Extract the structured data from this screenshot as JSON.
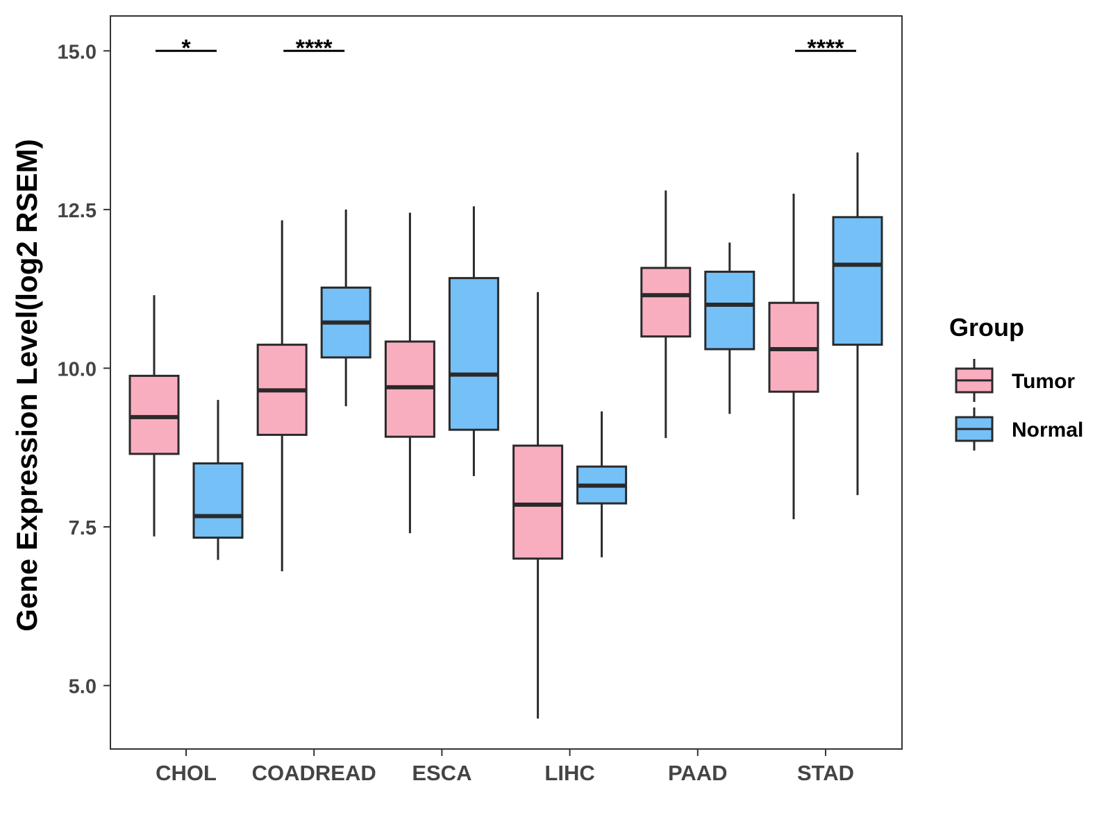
{
  "chart_data": {
    "type": "boxplot",
    "title": "",
    "xlabel": "",
    "ylabel": "Gene Expression Level(log2 RSEM)",
    "ylim": [
      4.0,
      15.55
    ],
    "yticks": [
      5.0,
      7.5,
      10.0,
      12.5,
      15.0
    ],
    "ytick_labels": [
      "5.0",
      "7.5",
      "10.0",
      "12.5",
      "15.0"
    ],
    "grid": false,
    "categories": [
      "CHOL",
      "COADREAD",
      "ESCA",
      "LIHC",
      "PAAD",
      "STAD"
    ],
    "legend": {
      "title": "Group",
      "position": "right",
      "entries": [
        {
          "name": "Tumor",
          "color": "#F9AEC0"
        },
        {
          "name": "Normal",
          "color": "#75C0F7"
        }
      ]
    },
    "series": [
      {
        "name": "Tumor",
        "color": "#F9AEC0",
        "boxes": [
          {
            "category": "CHOL",
            "min": 7.35,
            "q1": 8.65,
            "median": 9.23,
            "q3": 9.88,
            "max": 11.15
          },
          {
            "category": "COADREAD",
            "min": 6.8,
            "q1": 8.95,
            "median": 9.65,
            "q3": 10.37,
            "max": 12.33
          },
          {
            "category": "ESCA",
            "min": 7.4,
            "q1": 8.92,
            "median": 9.7,
            "q3": 10.42,
            "max": 12.45
          },
          {
            "category": "LIHC",
            "min": 4.48,
            "q1": 7.0,
            "median": 7.85,
            "q3": 8.78,
            "max": 11.2
          },
          {
            "category": "PAAD",
            "min": 8.9,
            "q1": 10.5,
            "median": 11.15,
            "q3": 11.58,
            "max": 12.8
          },
          {
            "category": "STAD",
            "min": 7.62,
            "q1": 9.63,
            "median": 10.3,
            "q3": 11.03,
            "max": 12.75
          }
        ]
      },
      {
        "name": "Normal",
        "color": "#75C0F7",
        "boxes": [
          {
            "category": "CHOL",
            "min": 6.98,
            "q1": 7.33,
            "median": 7.67,
            "q3": 8.5,
            "max": 9.5
          },
          {
            "category": "COADREAD",
            "min": 9.4,
            "q1": 10.17,
            "median": 10.72,
            "q3": 11.27,
            "max": 12.5
          },
          {
            "category": "ESCA",
            "min": 8.3,
            "q1": 9.03,
            "median": 9.9,
            "q3": 11.42,
            "max": 12.55
          },
          {
            "category": "LIHC",
            "min": 7.02,
            "q1": 7.87,
            "median": 8.15,
            "q3": 8.45,
            "max": 9.32
          },
          {
            "category": "PAAD",
            "min": 9.28,
            "q1": 10.3,
            "median": 11.0,
            "q3": 11.52,
            "max": 11.98
          },
          {
            "category": "STAD",
            "min": 8.0,
            "q1": 10.37,
            "median": 11.63,
            "q3": 12.38,
            "max": 13.4
          }
        ]
      }
    ],
    "significance": [
      {
        "category": "CHOL",
        "label": "*",
        "y": 15.0
      },
      {
        "category": "COADREAD",
        "label": "****",
        "y": 15.0
      },
      {
        "category": "STAD",
        "label": "****",
        "y": 15.0
      }
    ]
  }
}
